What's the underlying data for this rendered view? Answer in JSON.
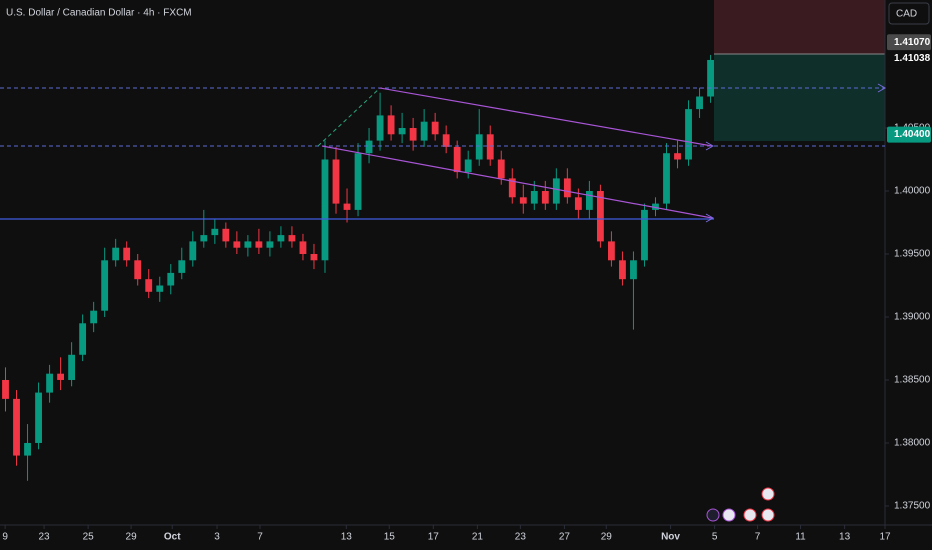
{
  "header": {
    "title": "U.S. Dollar / Canadian Dollar · 4h · FXCM",
    "currency": "CAD"
  },
  "chart_data": {
    "type": "candlestick",
    "x": [
      1.5,
      4.5,
      7.5,
      10.5,
      13.5,
      16.5,
      19.5,
      22.5,
      25.5,
      28.5,
      31.5,
      34.5,
      37.5,
      40.5,
      43.5,
      46.5,
      49.5,
      52.5,
      55.5,
      58.5,
      61.5,
      64.5,
      67.5,
      70.5,
      73.5,
      76.5,
      79.5,
      82.5,
      85.5,
      88.5,
      91.5,
      94.5,
      97.5,
      100.5,
      103.5,
      106.5,
      109.5,
      112.5,
      115.5,
      118.5,
      121.5,
      124.5,
      127.5,
      130.5,
      133.5,
      136.5,
      139.5,
      142.5,
      145.5,
      148.5,
      151.5,
      154.5,
      157.5,
      160.5,
      163.5,
      166.5,
      169.5,
      172.5,
      175.5,
      178.5,
      181.5,
      184.5,
      187.5,
      190.5,
      193.5
    ],
    "open": [
      1.385,
      1.3835,
      1.379,
      1.38,
      1.384,
      1.3855,
      1.385,
      1.387,
      1.3895,
      1.3905,
      1.3945,
      1.3955,
      1.3945,
      1.393,
      1.392,
      1.3925,
      1.3935,
      1.3945,
      1.396,
      1.3965,
      1.397,
      1.396,
      1.3955,
      1.396,
      1.3955,
      1.396,
      1.3965,
      1.396,
      1.395,
      1.3945,
      1.4025,
      1.399,
      1.3985,
      1.403,
      1.404,
      1.406,
      1.4045,
      1.405,
      1.404,
      1.4055,
      1.4045,
      1.4035,
      1.4015,
      1.4025,
      1.4045,
      1.4025,
      1.401,
      1.3995,
      1.399,
      1.4,
      1.399,
      1.401,
      1.3995,
      1.3985,
      1.4,
      1.396,
      1.3945,
      1.393,
      1.3945,
      1.3985,
      1.399,
      1.403,
      1.4025,
      1.4065,
      1.4075
    ],
    "high": [
      1.386,
      1.3842,
      1.3815,
      1.3848,
      1.3862,
      1.3868,
      1.388,
      1.3902,
      1.3912,
      1.3955,
      1.3962,
      1.396,
      1.395,
      1.3938,
      1.3932,
      1.3942,
      1.3955,
      1.3968,
      1.3985,
      1.3978,
      1.3975,
      1.3968,
      1.3965,
      1.397,
      1.3968,
      1.3972,
      1.3972,
      1.3966,
      1.3958,
      1.404,
      1.4035,
      1.4002,
      1.4038,
      1.405,
      1.4078,
      1.4068,
      1.4062,
      1.4058,
      1.4065,
      1.4062,
      1.4052,
      1.404,
      1.4032,
      1.4065,
      1.4052,
      1.4032,
      1.4018,
      1.4005,
      1.4008,
      1.4008,
      1.4018,
      1.4018,
      1.4002,
      1.4008,
      1.4005,
      1.3968,
      1.3952,
      1.3952,
      1.399,
      1.3995,
      1.4038,
      1.404,
      1.4072,
      1.4082,
      1.4108
    ],
    "low": [
      1.3825,
      1.3782,
      1.377,
      1.3795,
      1.3832,
      1.3842,
      1.3845,
      1.3865,
      1.3888,
      1.39,
      1.394,
      1.394,
      1.3925,
      1.3915,
      1.3912,
      1.3918,
      1.393,
      1.394,
      1.3955,
      1.3958,
      1.3955,
      1.395,
      1.3948,
      1.395,
      1.3948,
      1.3955,
      1.3955,
      1.3945,
      1.3938,
      1.3935,
      1.3982,
      1.3975,
      1.398,
      1.4022,
      1.4032,
      1.404,
      1.4038,
      1.4032,
      1.4035,
      1.404,
      1.403,
      1.401,
      1.401,
      1.402,
      1.402,
      1.4005,
      1.399,
      1.3982,
      1.3985,
      1.3985,
      1.3985,
      1.399,
      1.3978,
      1.3978,
      1.3955,
      1.394,
      1.3925,
      1.389,
      1.394,
      1.398,
      1.3985,
      1.4018,
      1.402,
      1.4058,
      1.407
    ],
    "close": [
      1.3835,
      1.379,
      1.38,
      1.384,
      1.3855,
      1.385,
      1.387,
      1.3895,
      1.3905,
      1.3945,
      1.3955,
      1.3945,
      1.393,
      1.392,
      1.3925,
      1.3935,
      1.3945,
      1.396,
      1.3965,
      1.397,
      1.396,
      1.3955,
      1.396,
      1.3955,
      1.396,
      1.3965,
      1.396,
      1.395,
      1.3945,
      1.4025,
      1.399,
      1.3985,
      1.403,
      1.404,
      1.406,
      1.4045,
      1.405,
      1.404,
      1.4055,
      1.4045,
      1.4035,
      1.4015,
      1.4025,
      1.4045,
      1.4025,
      1.401,
      1.3995,
      1.399,
      1.4,
      1.399,
      1.401,
      1.3995,
      1.3985,
      1.4,
      1.396,
      1.3945,
      1.393,
      1.3945,
      1.3985,
      1.399,
      1.403,
      1.4025,
      1.4065,
      1.4075,
      1.4104
    ],
    "up_color": "#089981",
    "down_color": "#f23645",
    "xlim": [
      0,
      241
    ],
    "ylim": [
      1.37349,
      1.41516
    ],
    "xticks": [
      {
        "value": 1.4,
        "label": "9"
      },
      {
        "value": 12,
        "label": "23"
      },
      {
        "value": 24,
        "label": "25"
      },
      {
        "value": 35.7,
        "label": "29"
      },
      {
        "value": 46.9,
        "label": "Oct"
      },
      {
        "value": 59.1,
        "label": "3"
      },
      {
        "value": 70.8,
        "label": "7"
      },
      {
        "value": 94.3,
        "label": "13"
      },
      {
        "value": 106,
        "label": "15"
      },
      {
        "value": 118,
        "label": "17"
      },
      {
        "value": 130,
        "label": "21"
      },
      {
        "value": 141.7,
        "label": "23"
      },
      {
        "value": 153.7,
        "label": "27"
      },
      {
        "value": 165.1,
        "label": "29"
      },
      {
        "value": 182.6,
        "label": "Nov"
      },
      {
        "value": 194.6,
        "label": "5"
      },
      {
        "value": 206.3,
        "label": "7"
      },
      {
        "value": 218,
        "label": "11"
      },
      {
        "value": 230,
        "label": "13"
      },
      {
        "value": 241,
        "label": "17"
      }
    ],
    "yticks": [
      {
        "value": 1.405,
        "label": "1.40500"
      },
      {
        "value": 1.4,
        "label": "1.40000"
      },
      {
        "value": 1.395,
        "label": "1.39500"
      },
      {
        "value": 1.39,
        "label": "1.39000"
      },
      {
        "value": 1.385,
        "label": "1.38500"
      },
      {
        "value": 1.38,
        "label": "1.38000"
      },
      {
        "value": 1.375,
        "label": "1.37500"
      }
    ],
    "price_labels": [
      {
        "value": 1.4107,
        "label": "1.41070"
      },
      {
        "value": 1.41038,
        "label": "1.41038"
      },
      {
        "value": 1.404,
        "label": "1.40400"
      }
    ]
  }
}
